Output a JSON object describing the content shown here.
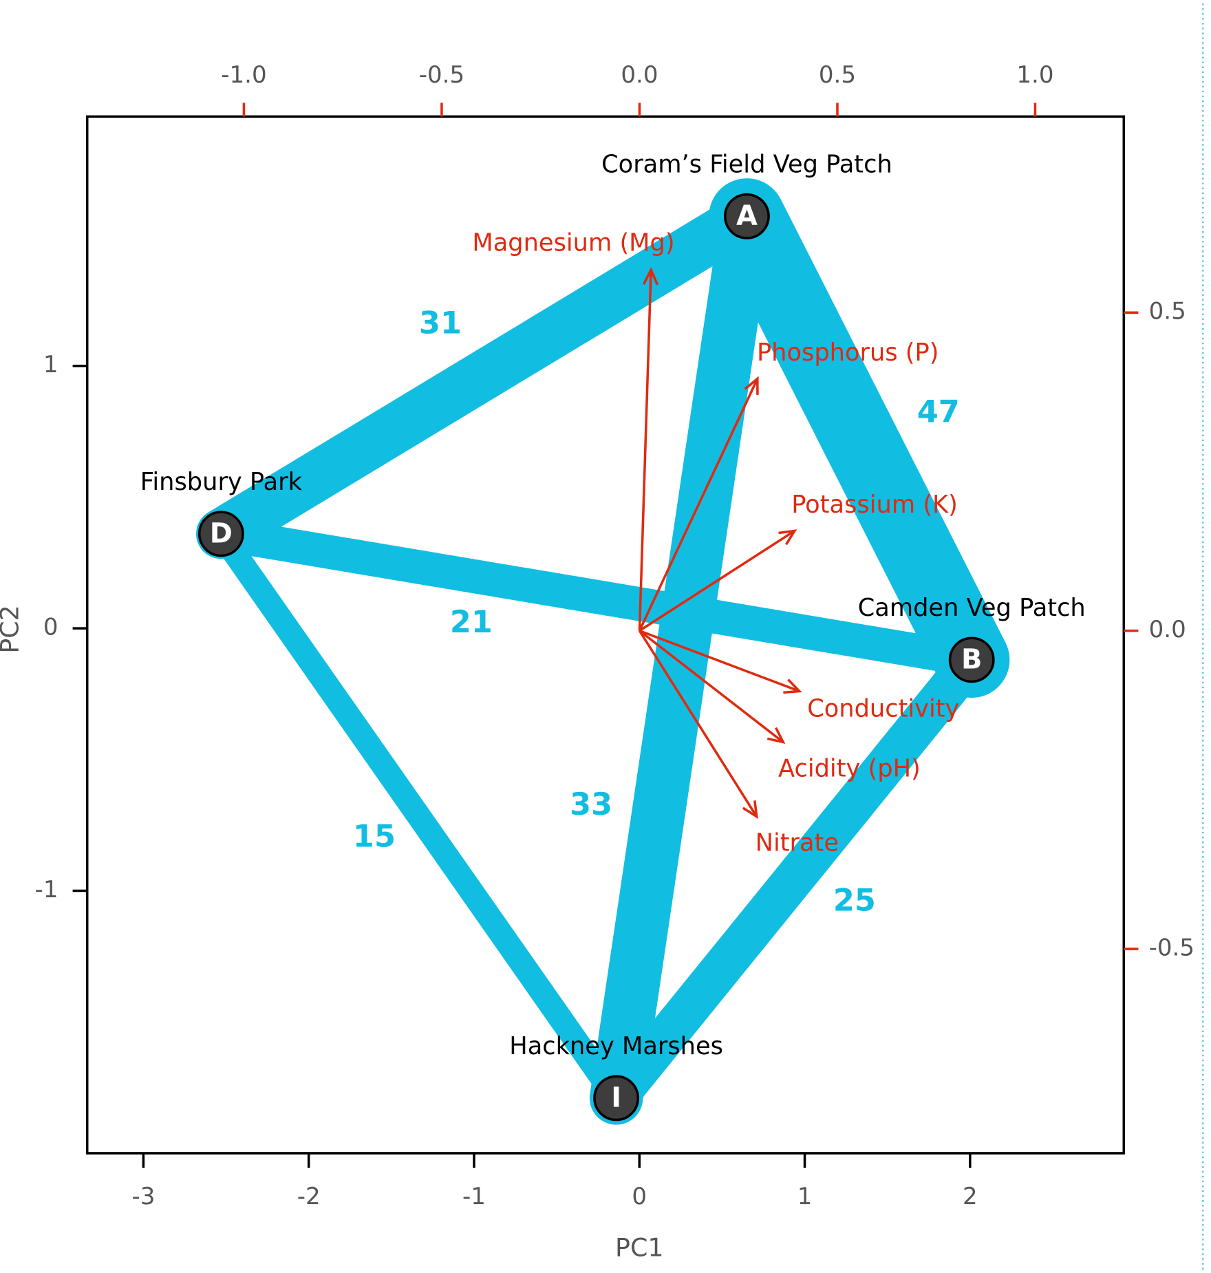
{
  "chart_data": {
    "type": "biplot",
    "x_label": "PC1",
    "y_label": "PC2",
    "xlim": [
      -3.34,
      2.93
    ],
    "ylim": [
      -2.0,
      1.95
    ],
    "xticks": [
      -3,
      -2,
      -1,
      0,
      1,
      2
    ],
    "yticks": [
      -1,
      0,
      1
    ],
    "x2lim": [
      -1.396,
      1.224
    ],
    "x2ticks": [
      {
        "value": -1,
        "label": "-1.0"
      },
      {
        "value": -0.5,
        "label": "-0.5"
      },
      {
        "value": 0,
        "label": "0.0"
      },
      {
        "value": 0.5,
        "label": "0.5"
      },
      {
        "value": 1,
        "label": "1.0"
      }
    ],
    "y2lim": [
      -0.821,
      0.808
    ],
    "y2ticks": [
      {
        "value": -0.5,
        "label": "-0.5"
      },
      {
        "value": 0,
        "label": "0.0"
      },
      {
        "value": 0.5,
        "label": "0.5"
      }
    ],
    "edge_color": "#12bde2",
    "loading_color": "#e02a10",
    "node_color": "#3d3d3d",
    "nodes": [
      {
        "id": "A",
        "name": "Coram’s Field Veg Patch",
        "x": 0.65,
        "y": 1.57
      },
      {
        "id": "B",
        "name": "Camden Veg Patch",
        "x": 2.01,
        "y": -0.12
      },
      {
        "id": "D",
        "name": "Finsbury Park",
        "x": -2.53,
        "y": 0.36
      },
      {
        "id": "I",
        "name": "Hackney Marshes",
        "x": -0.14,
        "y": -1.79
      }
    ],
    "edges": [
      {
        "from": "A",
        "to": "D",
        "weight": 31
      },
      {
        "from": "A",
        "to": "B",
        "weight": 47
      },
      {
        "from": "D",
        "to": "B",
        "weight": 21
      },
      {
        "from": "D",
        "to": "I",
        "weight": 15
      },
      {
        "from": "A",
        "to": "I",
        "weight": 33
      },
      {
        "from": "B",
        "to": "I",
        "weight": 25
      }
    ],
    "loadings": [
      {
        "name": "Magnesium (Mg)",
        "x": 0.029,
        "y": 0.567
      },
      {
        "name": "Phosphorus (P)",
        "x": 0.298,
        "y": 0.396
      },
      {
        "name": "Potassium (K)",
        "x": 0.392,
        "y": 0.157
      },
      {
        "name": "Conductivity",
        "x": 0.404,
        "y": -0.095
      },
      {
        "name": "Acidity (pH)",
        "x": 0.363,
        "y": -0.175
      },
      {
        "name": "Nitrate",
        "x": 0.296,
        "y": -0.292
      }
    ]
  }
}
